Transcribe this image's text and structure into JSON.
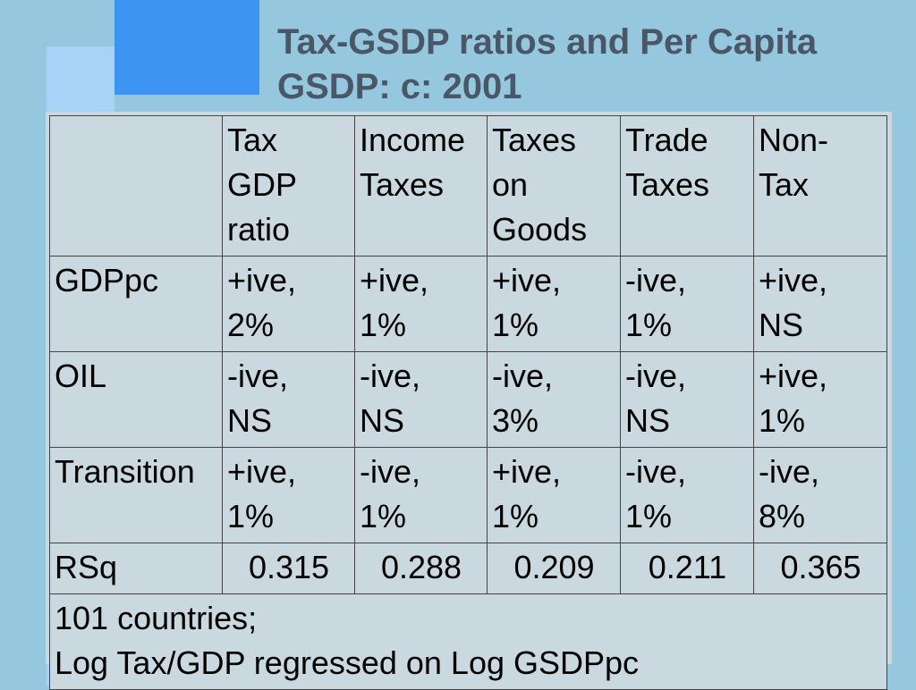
{
  "slide": {
    "title": "Tax-GSDP ratios and Per Capita GSDP: c: 2001"
  },
  "table": {
    "corner": "",
    "headers": [
      "Tax\nGDP\nratio",
      "Income\nTaxes",
      "Taxes\non\nGoods",
      "Trade\nTaxes",
      "Non-\nTax"
    ],
    "rows": [
      {
        "label": "GDPpc",
        "cells": [
          " +ive,\n2%",
          " +ive,\n1%",
          " +ive,\n1%",
          " -ive,\n1%",
          " +ive,\nNS"
        ]
      },
      {
        "label": "OIL",
        "cells": [
          " -ive,\nNS",
          " -ive,\nNS",
          " -ive,\n3%",
          " -ive,\nNS",
          " +ive,\n1%"
        ]
      },
      {
        "label": "Transition",
        "cells": [
          " +ive,\n1%",
          " -ive,\n1%",
          " +ive,\n1%",
          " -ive,\n1%",
          " -ive,\n8%"
        ]
      },
      {
        "label": "RSq",
        "cells": [
          "0.315",
          "0.288",
          "0.209",
          "0.211",
          "0.365"
        ]
      }
    ],
    "footnote": "101 countries;\nLog Tax/GDP regressed on Log GSDPpc"
  }
}
